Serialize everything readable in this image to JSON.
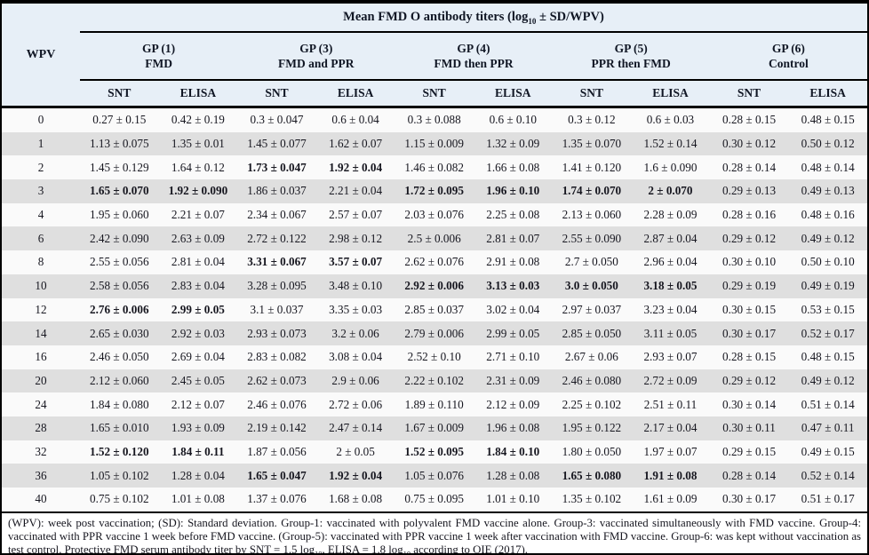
{
  "colors": {
    "header_bg": "#e7eff7",
    "row_bg": "#fafafa",
    "row_alt_bg": "#dfdfdf",
    "border": "#000000",
    "text": "#16161f",
    "header_text": "#101624"
  },
  "table": {
    "title": {
      "pre": "Mean FMD O antibody titers (log",
      "sub": "10",
      "post": " ± SD/WPV)"
    },
    "wpv_label": "WPV",
    "groups": [
      {
        "name": "GP (1)",
        "desc": "FMD"
      },
      {
        "name": "GP (3)",
        "desc": "FMD and PPR"
      },
      {
        "name": "GP (4)",
        "desc": "FMD then PPR"
      },
      {
        "name": "GP (5)",
        "desc": "PPR then FMD"
      },
      {
        "name": "GP (6)",
        "desc": "Control"
      }
    ],
    "subheaders": [
      "SNT",
      "ELISA"
    ],
    "rows": [
      {
        "wpv": "0",
        "values": [
          "0.27 ± 0.15",
          "0.42 ± 0.19",
          "0.3 ± 0.047",
          "0.6 ± 0.04",
          "0.3 ± 0.088",
          "0.6 ± 0.10",
          "0.3 ± 0.12",
          "0.6 ± 0.03",
          "0.28 ± 0.15",
          "0.48 ± 0.15"
        ],
        "bold": []
      },
      {
        "wpv": "1",
        "values": [
          "1.13 ± 0.075",
          "1.35 ± 0.01",
          "1.45 ± 0.077",
          "1.62 ± 0.07",
          "1.15 ± 0.009",
          "1.32 ± 0.09",
          "1.35 ± 0.070",
          "1.52 ± 0.14",
          "0.30 ± 0.12",
          "0.50 ± 0.12"
        ],
        "bold": []
      },
      {
        "wpv": "2",
        "values": [
          "1.45 ± 0.129",
          "1.64 ± 0.12",
          "1.73 ± 0.047",
          "1.92 ± 0.04",
          "1.46 ± 0.082",
          "1.66 ± 0.08",
          "1.41 ± 0.120",
          "1.6 ± 0.090",
          "0.28 ± 0.14",
          "0.48 ± 0.14"
        ],
        "bold": [
          2,
          3
        ]
      },
      {
        "wpv": "3",
        "values": [
          "1.65 ± 0.070",
          "1.92 ± 0.090",
          "1.86 ± 0.037",
          "2.21 ± 0.04",
          "1.72 ± 0.095",
          "1.96 ± 0.10",
          "1.74 ± 0.070",
          "2 ± 0.070",
          "0.29 ± 0.13",
          "0.49 ± 0.13"
        ],
        "bold": [
          0,
          1,
          4,
          5,
          6,
          7
        ]
      },
      {
        "wpv": "4",
        "values": [
          "1.95 ± 0.060",
          "2.21 ± 0.07",
          "2.34 ± 0.067",
          "2.57 ± 0.07",
          "2.03 ± 0.076",
          "2.25 ± 0.08",
          "2.13 ± 0.060",
          "2.28 ± 0.09",
          "0.28 ± 0.16",
          "0.48 ± 0.16"
        ],
        "bold": []
      },
      {
        "wpv": "6",
        "values": [
          "2.42 ± 0.090",
          "2.63 ± 0.09",
          "2.72 ± 0.122",
          "2.98 ± 0.12",
          "2.5 ± 0.006",
          "2.81 ± 0.07",
          "2.55 ± 0.090",
          "2.87 ± 0.04",
          "0.29 ± 0.12",
          "0.49 ± 0.12"
        ],
        "bold": []
      },
      {
        "wpv": "8",
        "values": [
          "2.55 ± 0.056",
          "2.81 ± 0.04",
          "3.31 ± 0.067",
          "3.57 ± 0.07",
          "2.62 ± 0.076",
          "2.91 ± 0.08",
          "2.7 ± 0.050",
          "2.96 ± 0.04",
          "0.30 ± 0.10",
          "0.50 ± 0.10"
        ],
        "bold": [
          2,
          3
        ]
      },
      {
        "wpv": "10",
        "values": [
          "2.58 ± 0.056",
          "2.83 ± 0.04",
          "3.28 ± 0.095",
          "3.48 ± 0.10",
          "2.92 ± 0.006",
          "3.13 ± 0.03",
          "3.0 ± 0.050",
          "3.18 ± 0.05",
          "0.29 ± 0.19",
          "0.49 ± 0.19"
        ],
        "bold": [
          4,
          5,
          6,
          7
        ]
      },
      {
        "wpv": "12",
        "values": [
          "2.76 ± 0.006",
          "2.99 ± 0.05",
          "3.1 ± 0.037",
          "3.35 ± 0.03",
          "2.85 ± 0.037",
          "3.02 ± 0.04",
          "2.97 ± 0.037",
          "3.23 ± 0.04",
          "0.30 ± 0.15",
          "0.53 ± 0.15"
        ],
        "bold": [
          0,
          1
        ]
      },
      {
        "wpv": "14",
        "values": [
          "2.65 ± 0.030",
          "2.92 ± 0.03",
          "2.93 ± 0.073",
          "3.2 ± 0.06",
          "2.79 ± 0.006",
          "2.99 ± 0.05",
          "2.85 ± 0.050",
          "3.11 ± 0.05",
          "0.30 ± 0.17",
          "0.52 ± 0.17"
        ],
        "bold": []
      },
      {
        "wpv": "16",
        "values": [
          "2.46 ± 0.050",
          "2.69 ± 0.04",
          "2.83 ± 0.082",
          "3.08 ± 0.04",
          "2.52 ± 0.10",
          "2.71 ± 0.10",
          "2.67 ± 0.06",
          "2.93 ± 0.07",
          "0.28 ± 0.15",
          "0.48 ± 0.15"
        ],
        "bold": []
      },
      {
        "wpv": "20",
        "values": [
          "2.12 ± 0.060",
          "2.45 ± 0.05",
          "2.62 ± 0.073",
          "2.9 ± 0.06",
          "2.22 ± 0.102",
          "2.31 ± 0.09",
          "2.46 ± 0.080",
          "2.72 ± 0.09",
          "0.29 ± 0.12",
          "0.49 ± 0.12"
        ],
        "bold": []
      },
      {
        "wpv": "24",
        "values": [
          "1.84 ± 0.080",
          "2.12 ± 0.07",
          "2.46 ± 0.076",
          "2.72 ± 0.06",
          "1.89 ± 0.110",
          "2.12 ± 0.09",
          "2.25 ± 0.102",
          "2.51 ± 0.11",
          "0.30 ± 0.14",
          "0.51 ± 0.14"
        ],
        "bold": []
      },
      {
        "wpv": "28",
        "values": [
          "1.65 ± 0.010",
          "1.93 ± 0.09",
          "2.19 ± 0.142",
          "2.47 ± 0.14",
          "1.67 ± 0.009",
          "1.96 ± 0.08",
          "1.95 ± 0.122",
          "2.17 ± 0.04",
          "0.30 ± 0.11",
          "0.47 ± 0.11"
        ],
        "bold": []
      },
      {
        "wpv": "32",
        "values": [
          "1.52 ± 0.120",
          "1.84 ± 0.11",
          "1.87 ± 0.056",
          "2 ± 0.05",
          "1.52 ± 0.095",
          "1.84 ± 0.10",
          "1.80 ± 0.050",
          "1.97 ± 0.07",
          "0.29 ± 0.15",
          "0.49 ± 0.15"
        ],
        "bold": [
          0,
          1,
          4,
          5
        ]
      },
      {
        "wpv": "36",
        "values": [
          "1.05 ± 0.102",
          "1.28 ± 0.04",
          "1.65 ± 0.047",
          "1.92 ± 0.04",
          "1.05 ± 0.076",
          "1.28 ± 0.08",
          "1.65 ± 0.080",
          "1.91 ± 0.08",
          "0.28 ± 0.14",
          "0.52 ± 0.14"
        ],
        "bold": [
          2,
          3,
          6,
          7
        ]
      },
      {
        "wpv": "40",
        "values": [
          "0.75 ± 0.102",
          "1.01 ± 0.08",
          "1.37 ± 0.076",
          "1.68 ± 0.08",
          "0.75 ± 0.095",
          "1.01 ± 0.10",
          "1.35 ± 0.102",
          "1.61 ± 0.09",
          "0.30 ± 0.17",
          "0.51 ± 0.17"
        ],
        "bold": []
      }
    ]
  },
  "footnote": {
    "segments": [
      {
        "text": "(WPV): week post vaccination; (SD): Standard deviation. Group-1: vaccinated with polyvalent FMD vaccine alone. Group-3: vaccinated simultaneously with FMD vaccine. Group-4: vaccinated with PPR vaccine 1 week before FMD vaccine. (Group-5): vaccinated with PPR vaccine 1 week after vaccination with FMD vaccine. Group-6: was kept without vaccination as test control. Protective FMD serum antibody titer by SNT = 1.5 log"
      },
      {
        "sub": "10"
      },
      {
        "text": ", ELISA = 1.8 log"
      },
      {
        "sub": "10"
      },
      {
        "text": " according to OIE (2017)."
      }
    ]
  }
}
